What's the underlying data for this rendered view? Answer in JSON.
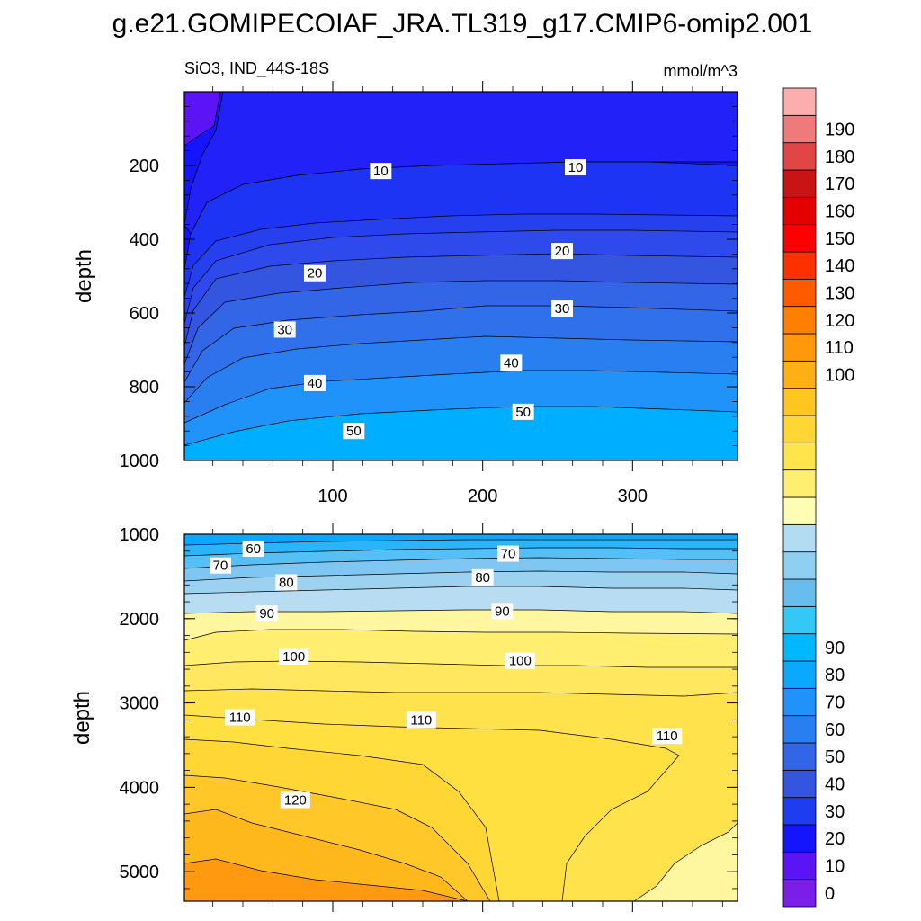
{
  "chart_data": {
    "type": "contour",
    "title": "g.e21.GOMIPECOIAF_JRA.TL319_g17.CMIP6-omip2.001",
    "subtitle_left": "SiO3, IND_44S-18S",
    "subtitle_right": "mmol/m^3",
    "colorbar": {
      "levels": [
        0,
        10,
        20,
        30,
        40,
        50,
        60,
        70,
        80,
        90,
        100,
        110,
        120,
        130,
        140,
        150,
        160,
        170,
        180,
        190
      ],
      "colors": [
        "#7a1fe8",
        "#5b14f5",
        "#1414ff",
        "#1e3cf0",
        "#3355e0",
        "#3366e6",
        "#2a7ff0",
        "#1f93fa",
        "#0aa8ff",
        "#00b8ff",
        "#33c8f8",
        "#66bdee",
        "#8fcff0",
        "#b2dcf2",
        "#fffcb4",
        "#ffef70",
        "#ffe44c",
        "#ffd633",
        "#ffc620",
        "#ffb014",
        "#ff980a",
        "#ff8000",
        "#ff5a00",
        "#ff3000",
        "#ff0000",
        "#e40000",
        "#c81414",
        "#e04646",
        "#f07a7a",
        "#fcaeae"
      ]
    },
    "panels": [
      {
        "name": "upper",
        "ylabel": "depth",
        "ylim": [
          1000,
          0
        ],
        "yticks": [
          200,
          400,
          600,
          800,
          1000
        ],
        "xlim": [
          1,
          370
        ],
        "xticks": [
          100,
          200,
          300
        ],
        "contour_labels": [
          {
            "text": "10",
            "x": 132,
            "y": 215
          },
          {
            "text": "10",
            "x": 262,
            "y": 205
          },
          {
            "text": "20",
            "x": 88,
            "y": 492
          },
          {
            "text": "20",
            "x": 253,
            "y": 432
          },
          {
            "text": "30",
            "x": 68,
            "y": 645
          },
          {
            "text": "30",
            "x": 253,
            "y": 588
          },
          {
            "text": "40",
            "x": 88,
            "y": 790
          },
          {
            "text": "40",
            "x": 219,
            "y": 735
          },
          {
            "text": "50",
            "x": 114,
            "y": 920
          },
          {
            "text": "50",
            "x": 227,
            "y": 868
          }
        ]
      },
      {
        "name": "lower",
        "ylabel": "depth",
        "ylim": [
          5350,
          1000
        ],
        "yticks": [
          1000,
          2000,
          3000,
          4000,
          5000
        ],
        "xlim": [
          1,
          370
        ],
        "xticks": [
          100,
          200,
          300
        ],
        "contour_labels": [
          {
            "text": "60",
            "x": 47,
            "y": 1170
          },
          {
            "text": "70",
            "x": 25,
            "y": 1370
          },
          {
            "text": "70",
            "x": 217,
            "y": 1230
          },
          {
            "text": "80",
            "x": 69,
            "y": 1570
          },
          {
            "text": "80",
            "x": 200,
            "y": 1510
          },
          {
            "text": "90",
            "x": 56,
            "y": 1940
          },
          {
            "text": "90",
            "x": 213,
            "y": 1910
          },
          {
            "text": "100",
            "x": 74,
            "y": 2450
          },
          {
            "text": "100",
            "x": 225,
            "y": 2500
          },
          {
            "text": "110",
            "x": 38,
            "y": 3170
          },
          {
            "text": "110",
            "x": 159,
            "y": 3200
          },
          {
            "text": "110",
            "x": 323,
            "y": 3390
          },
          {
            "text": "120",
            "x": 75,
            "y": 4150
          }
        ]
      }
    ]
  }
}
